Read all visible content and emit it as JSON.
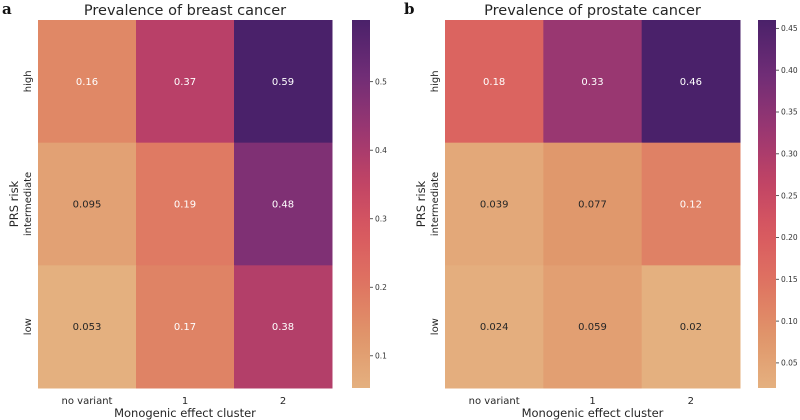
{
  "chart_data": [
    {
      "type": "heatmap",
      "panel_label": "a",
      "title": "Prevalence of breast cancer",
      "xlabel": "Monogenic effect cluster",
      "ylabel": "PRS risk",
      "x_categories": [
        "no variant",
        "1",
        "2"
      ],
      "y_categories": [
        "high",
        "intermediate",
        "low"
      ],
      "values": [
        [
          0.16,
          0.37,
          0.59
        ],
        [
          0.095,
          0.19,
          0.48
        ],
        [
          0.053,
          0.17,
          0.38
        ]
      ],
      "annotations": [
        [
          "0.16",
          "0.37",
          "0.59"
        ],
        [
          "0.095",
          "0.19",
          "0.48"
        ],
        [
          "0.053",
          "0.17",
          "0.38"
        ]
      ],
      "colormap": "flare",
      "colorbar": {
        "range": [
          0.053,
          0.59
        ],
        "ticks": [
          0.1,
          0.2,
          0.3,
          0.4,
          0.5
        ],
        "tick_labels": [
          "0.1",
          "0.2",
          "0.3",
          "0.4",
          "0.5"
        ]
      }
    },
    {
      "type": "heatmap",
      "panel_label": "b",
      "title": "Prevalence of prostate cancer",
      "xlabel": "Monogenic effect cluster",
      "ylabel": "PRS risk",
      "x_categories": [
        "no variant",
        "1",
        "2"
      ],
      "y_categories": [
        "high",
        "intermediate",
        "low"
      ],
      "values": [
        [
          0.18,
          0.33,
          0.46
        ],
        [
          0.039,
          0.077,
          0.12
        ],
        [
          0.024,
          0.059,
          0.02
        ]
      ],
      "annotations": [
        [
          "0.18",
          "0.33",
          "0.46"
        ],
        [
          "0.039",
          "0.077",
          "0.12"
        ],
        [
          "0.024",
          "0.059",
          "0.02"
        ]
      ],
      "colormap": "flare",
      "colorbar": {
        "range": [
          0.02,
          0.46
        ],
        "ticks": [
          0.05,
          0.1,
          0.15,
          0.2,
          0.25,
          0.3,
          0.35,
          0.4,
          0.45
        ],
        "tick_labels": [
          "0.05",
          "0.10",
          "0.15",
          "0.20",
          "0.25",
          "0.30",
          "0.35",
          "0.40",
          "0.45"
        ]
      }
    }
  ],
  "colormap_stops": [
    "#e4b07f",
    "#e0956a",
    "#df7361",
    "#d85860",
    "#be4266",
    "#963672",
    "#6e2c76",
    "#4a216a"
  ]
}
